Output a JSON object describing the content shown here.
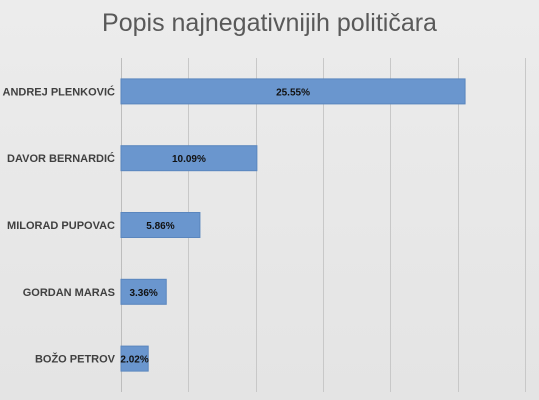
{
  "chart_data": {
    "type": "bar",
    "orientation": "horizontal",
    "title": "Popis najnegativnijih političara",
    "categories": [
      "ANDREJ PLENKOVIĆ",
      "DAVOR BERNARDIĆ",
      "MILORAD PUPOVAC",
      "GORDAN MARAS",
      "BOŽO PETROV"
    ],
    "values": [
      25.55,
      10.09,
      5.86,
      3.36,
      2.02
    ],
    "data_labels": [
      "25.55%",
      "10.09%",
      "5.86%",
      "3.36%",
      "2.02%"
    ],
    "xlim": [
      0,
      30
    ],
    "grid": true,
    "legend": "none",
    "colors": {
      "bar": "#6a96ce",
      "bar_stroke": "#5a86be",
      "grid": "#c8c8c8",
      "axis": "#bdbdbd",
      "background": "#e9e9e9"
    }
  }
}
